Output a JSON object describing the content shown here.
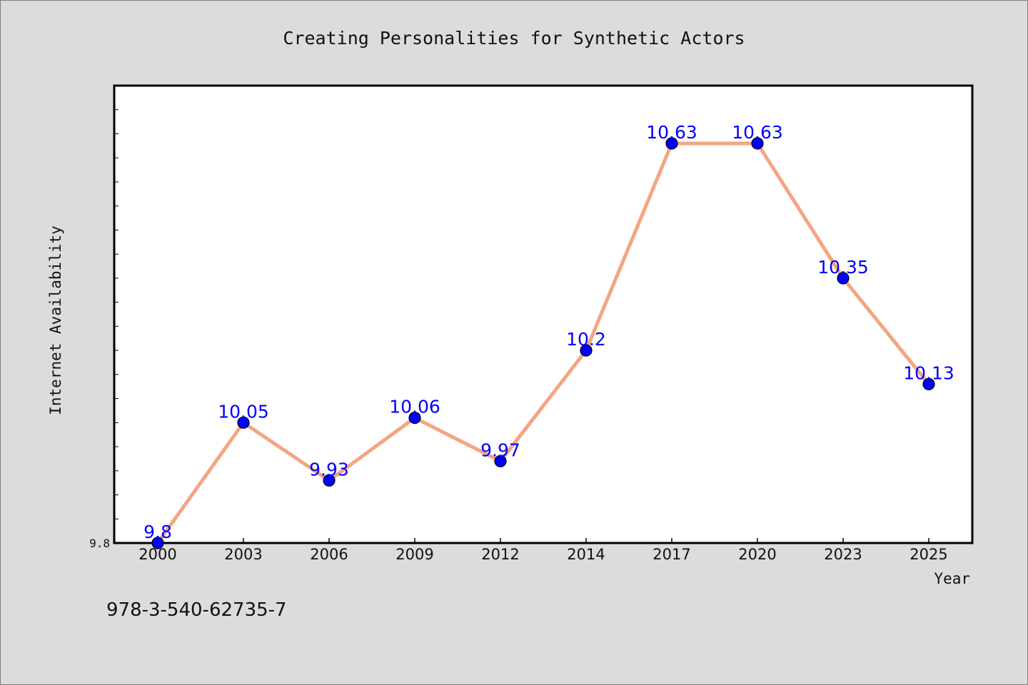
{
  "chart_data": {
    "type": "line",
    "title": "Creating Personalities for Synthetic Actors",
    "xlabel": "Year",
    "ylabel": "Internet Availability",
    "categories": [
      "2000",
      "2003",
      "2006",
      "2009",
      "2012",
      "2014",
      "2017",
      "2020",
      "2023",
      "2025"
    ],
    "values": [
      9.8,
      10.05,
      9.93,
      10.06,
      9.97,
      10.2,
      10.63,
      10.63,
      10.35,
      10.13
    ],
    "data_labels": [
      "9.8",
      "10.05",
      "9.93",
      "10.06",
      "9.97",
      "10.2",
      "10.63",
      "10.63",
      "10.35",
      "10.13"
    ],
    "ylim": [
      9.8,
      10.75
    ],
    "yticks_labeled": [
      "9.8"
    ],
    "y_minor_tick_step": 0.05,
    "grid": false,
    "legend": "none",
    "colors": {
      "line": "#f4a582",
      "marker": "#0000ff",
      "label": "#0000ff",
      "background": "#dcdcdc",
      "plot_area": "#ffffff"
    }
  },
  "footer": {
    "isbn": "978-3-540-62735-7"
  }
}
